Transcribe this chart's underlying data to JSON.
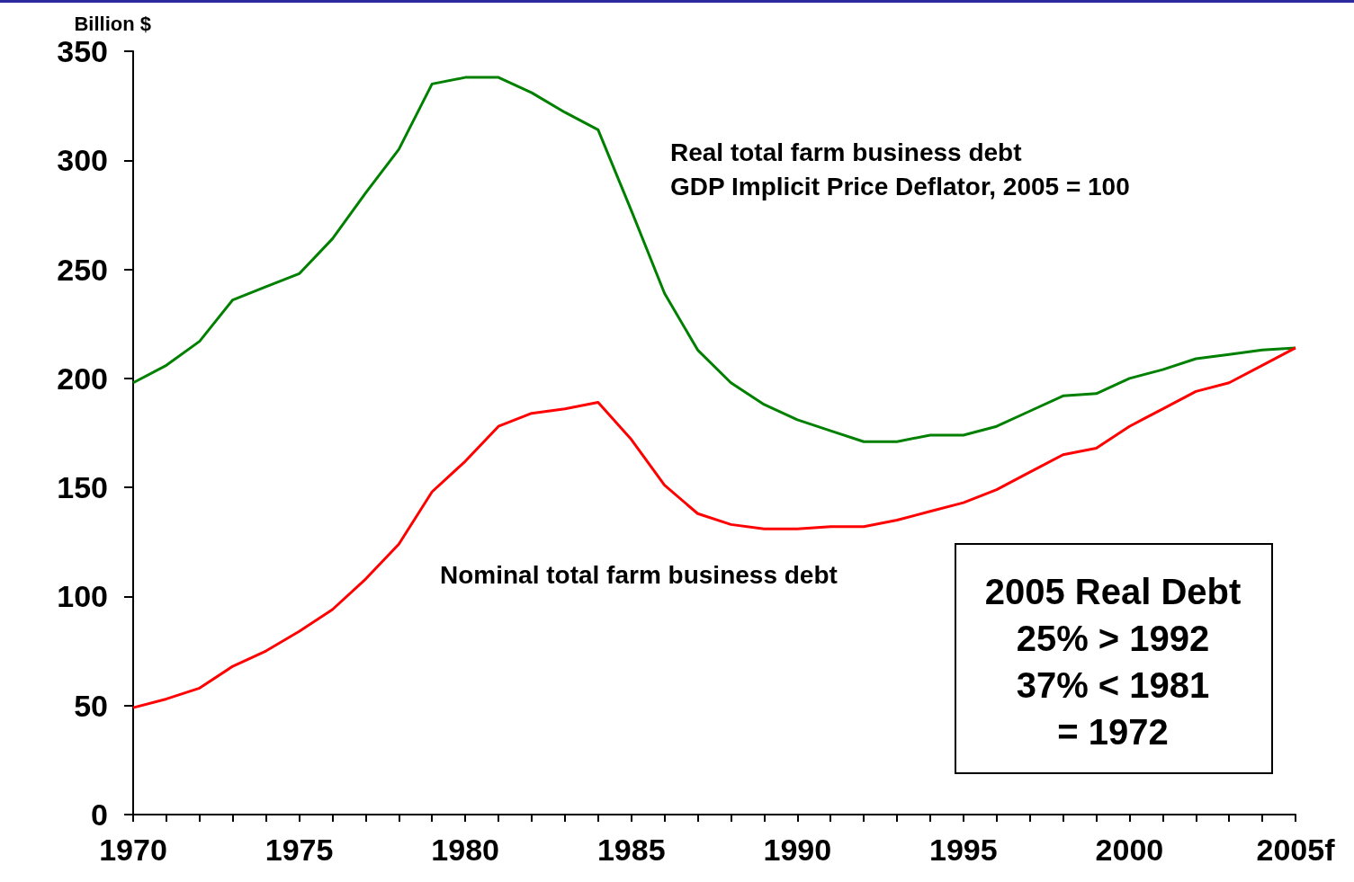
{
  "chart_data": {
    "type": "line",
    "ylabel": "Billion $",
    "x": [
      1970,
      1971,
      1972,
      1973,
      1974,
      1975,
      1976,
      1977,
      1978,
      1979,
      1980,
      1981,
      1982,
      1983,
      1984,
      1985,
      1986,
      1987,
      1988,
      1989,
      1990,
      1991,
      1992,
      1993,
      1994,
      1995,
      1996,
      1997,
      1998,
      1999,
      2000,
      2001,
      2002,
      2003,
      2004,
      2005
    ],
    "series": [
      {
        "name": "Real total farm business debt",
        "color": "#008000",
        "values": [
          198,
          206,
          217,
          236,
          242,
          248,
          264,
          285,
          305,
          335,
          338,
          338,
          331,
          322,
          314,
          277,
          239,
          213,
          198,
          188,
          181,
          176,
          171,
          171,
          174,
          174,
          178,
          185,
          192,
          193,
          200,
          204,
          209,
          211,
          213,
          214
        ]
      },
      {
        "name": "Nominal total farm business debt",
        "color": "#ff0000",
        "values": [
          49,
          53,
          58,
          68,
          75,
          84,
          94,
          108,
          124,
          148,
          162,
          178,
          184,
          186,
          189,
          172,
          151,
          138,
          133,
          131,
          131,
          132,
          132,
          135,
          139,
          143,
          149,
          157,
          165,
          168,
          178,
          186,
          194,
          198,
          206,
          214
        ]
      }
    ],
    "annotations": [
      "GDP Implicit Price Deflator, 2005 = 100",
      "2005 Real Debt\n25% > 1992\n37% < 1981\n= 1972"
    ],
    "xlim": [
      1970,
      2005
    ],
    "xticks": [
      1970,
      {
        "value": 1971,
        "label": null
      },
      {
        "value": 1972,
        "label": null
      },
      {
        "value": 1973,
        "label": null
      },
      {
        "value": 1974,
        "label": null
      },
      1975,
      {
        "value": 1976,
        "label": null
      },
      {
        "value": 1977,
        "label": null
      },
      {
        "value": 1978,
        "label": null
      },
      {
        "value": 1979,
        "label": null
      },
      1980,
      {
        "value": 1981,
        "label": null
      },
      {
        "value": 1982,
        "label": null
      },
      {
        "value": 1983,
        "label": null
      },
      {
        "value": 1984,
        "label": null
      },
      1985,
      {
        "value": 1986,
        "label": null
      },
      {
        "value": 1987,
        "label": null
      },
      {
        "value": 1988,
        "label": null
      },
      {
        "value": 1989,
        "label": null
      },
      1990,
      {
        "value": 1991,
        "label": null
      },
      {
        "value": 1992,
        "label": null
      },
      {
        "value": 1993,
        "label": null
      },
      {
        "value": 1994,
        "label": null
      },
      1995,
      {
        "value": 1996,
        "label": null
      },
      {
        "value": 1997,
        "label": null
      },
      {
        "value": 1998,
        "label": null
      },
      {
        "value": 1999,
        "label": null
      },
      2000,
      {
        "value": 2001,
        "label": null
      },
      {
        "value": 2002,
        "label": null
      },
      {
        "value": 2003,
        "label": null
      },
      {
        "value": 2004,
        "label": null
      },
      {
        "value": 2005,
        "label": "2005f"
      }
    ],
    "ylim": [
      0,
      350
    ],
    "yticks": [
      0,
      50,
      100,
      150,
      200,
      250,
      300,
      350
    ],
    "grid": false,
    "legend": false,
    "marker": "none",
    "line_style": "solid"
  }
}
